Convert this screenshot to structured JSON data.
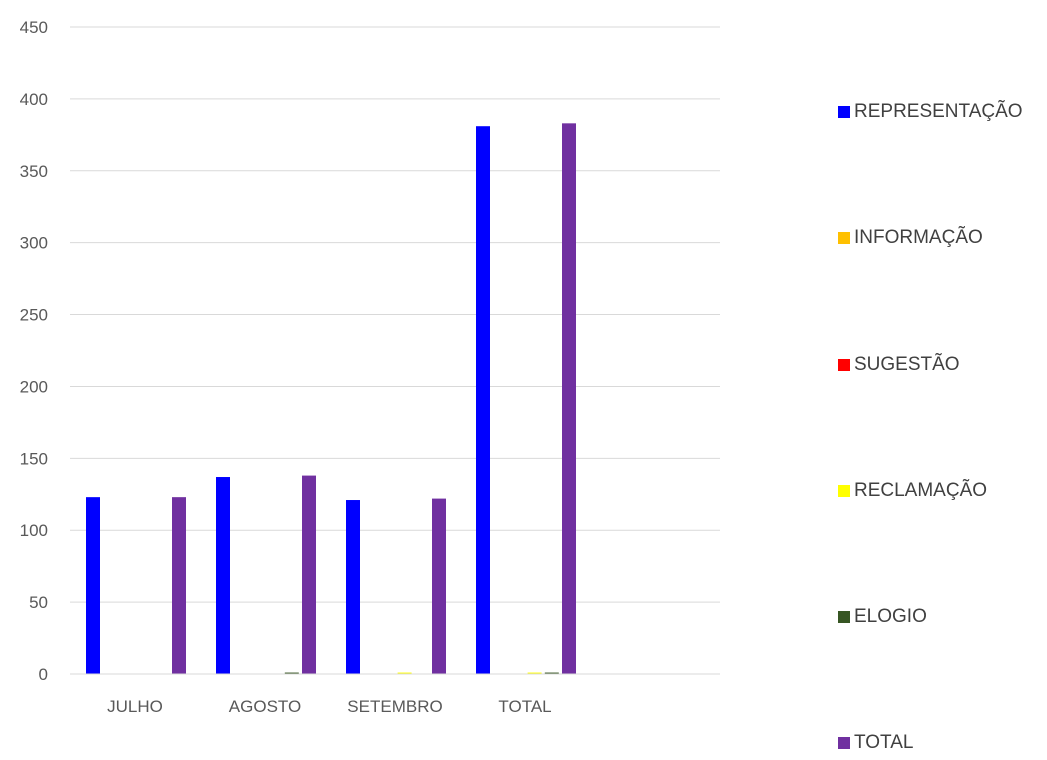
{
  "chart_data": {
    "type": "bar",
    "categories": [
      "JULHO",
      "AGOSTO",
      "SETEMBRO",
      "TOTAL"
    ],
    "series": [
      {
        "name": "REPRESENTAÇÃO",
        "color": "#0000FF",
        "values": [
          123,
          137,
          121,
          381
        ]
      },
      {
        "name": "INFORMAÇÃO",
        "color": "#FFC000",
        "values": [
          0,
          0,
          0,
          0
        ]
      },
      {
        "name": "SUGESTÃO",
        "color": "#FF0000",
        "values": [
          0,
          0,
          0,
          0
        ]
      },
      {
        "name": "RECLAMAÇÃO",
        "color": "#FFFF00",
        "values": [
          0,
          0,
          1,
          1
        ]
      },
      {
        "name": "ELOGIO",
        "color": "#375623",
        "values": [
          0,
          1,
          0,
          1
        ]
      },
      {
        "name": "TOTAL",
        "color": "#7030A0",
        "values": [
          123,
          138,
          122,
          383
        ]
      }
    ],
    "yticks": [
      0,
      50,
      100,
      150,
      200,
      250,
      300,
      350,
      400,
      450
    ],
    "ylim": [
      0,
      450
    ],
    "grid": true,
    "legend_position": "right",
    "title": "",
    "xlabel": "",
    "ylabel": ""
  }
}
